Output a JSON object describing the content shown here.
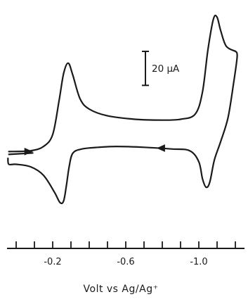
{
  "chart_data": {
    "type": "line",
    "title": "",
    "xlabel": "Volt vs Ag/Ag⁺",
    "ylabel": "",
    "xlim": [
      0.05,
      -1.25
    ],
    "x_direction": "decreasing to the right",
    "tick_values": [
      0.0,
      -0.1,
      -0.2,
      -0.3,
      -0.4,
      -0.5,
      -0.6,
      -0.7,
      -0.8,
      -0.9,
      -1.0,
      -1.1,
      -1.2
    ],
    "tick_labels": [
      {
        "value": -0.2,
        "text": "-0.2"
      },
      {
        "value": -0.6,
        "text": "-0.6"
      },
      {
        "value": -1.0,
        "text": "-1.0"
      }
    ],
    "scale_bar": {
      "label": "20 μA",
      "value_uA": 20
    },
    "grid": false,
    "ylim_uA": [
      -40,
      85
    ],
    "series": [
      {
        "segment": "forward",
        "points": [
          {
            "x": 0.04,
            "y": 0.0
          },
          {
            "x": -0.08,
            "y": 0.5
          },
          {
            "x": -0.15,
            "y": 3.0
          },
          {
            "x": -0.2,
            "y": 10.0
          },
          {
            "x": -0.235,
            "y": 30.0
          },
          {
            "x": -0.26,
            "y": 46.0
          },
          {
            "x": -0.285,
            "y": 52.0
          },
          {
            "x": -0.31,
            "y": 45.0
          },
          {
            "x": -0.35,
            "y": 31.0
          },
          {
            "x": -0.4,
            "y": 25.0
          },
          {
            "x": -0.5,
            "y": 21.0
          },
          {
            "x": -0.65,
            "y": 19.0
          },
          {
            "x": -0.8,
            "y": 18.5
          },
          {
            "x": -0.9,
            "y": 19.0
          },
          {
            "x": -0.98,
            "y": 22.0
          },
          {
            "x": -1.02,
            "y": 35.0
          },
          {
            "x": -1.05,
            "y": 60.0
          },
          {
            "x": -1.08,
            "y": 78.0
          },
          {
            "x": -1.1,
            "y": 79.0
          },
          {
            "x": -1.12,
            "y": 71.0
          },
          {
            "x": -1.15,
            "y": 62.0
          },
          {
            "x": -1.2,
            "y": 59.0
          }
        ]
      },
      {
        "segment": "reverse",
        "points": [
          {
            "x": -1.2,
            "y": 59.0
          },
          {
            "x": -1.21,
            "y": 56.0
          },
          {
            "x": -1.19,
            "y": 40.0
          },
          {
            "x": -1.16,
            "y": 20.0
          },
          {
            "x": -1.12,
            "y": 6.0
          },
          {
            "x": -1.085,
            "y": -5.0
          },
          {
            "x": -1.06,
            "y": -18.0
          },
          {
            "x": -1.04,
            "y": -21.0
          },
          {
            "x": -1.02,
            "y": -16.0
          },
          {
            "x": -1.0,
            "y": -6.0
          },
          {
            "x": -0.95,
            "y": 0.5
          },
          {
            "x": -0.85,
            "y": 1.5
          },
          {
            "x": -0.7,
            "y": 2.5
          },
          {
            "x": -0.55,
            "y": 3.0
          },
          {
            "x": -0.45,
            "y": 2.5
          },
          {
            "x": -0.36,
            "y": 1.5
          },
          {
            "x": -0.31,
            "y": -1.0
          },
          {
            "x": -0.29,
            "y": -9.0
          },
          {
            "x": -0.275,
            "y": -20.0
          },
          {
            "x": -0.26,
            "y": -29.0
          },
          {
            "x": -0.24,
            "y": -30.0
          },
          {
            "x": -0.21,
            "y": -24.0
          },
          {
            "x": -0.15,
            "y": -14.0
          },
          {
            "x": -0.08,
            "y": -9.0
          },
          {
            "x": 0.0,
            "y": -7.5
          },
          {
            "x": 0.04,
            "y": -7.5
          },
          {
            "x": 0.045,
            "y": -4.0
          }
        ]
      }
    ],
    "annotations": [
      {
        "type": "arrow",
        "direction": "right",
        "at_x": -0.06,
        "y": 0.0,
        "segment": "forward"
      },
      {
        "type": "arrow",
        "direction": "left",
        "at_x": -0.8,
        "y": 2.0,
        "segment": "reverse"
      }
    ]
  }
}
